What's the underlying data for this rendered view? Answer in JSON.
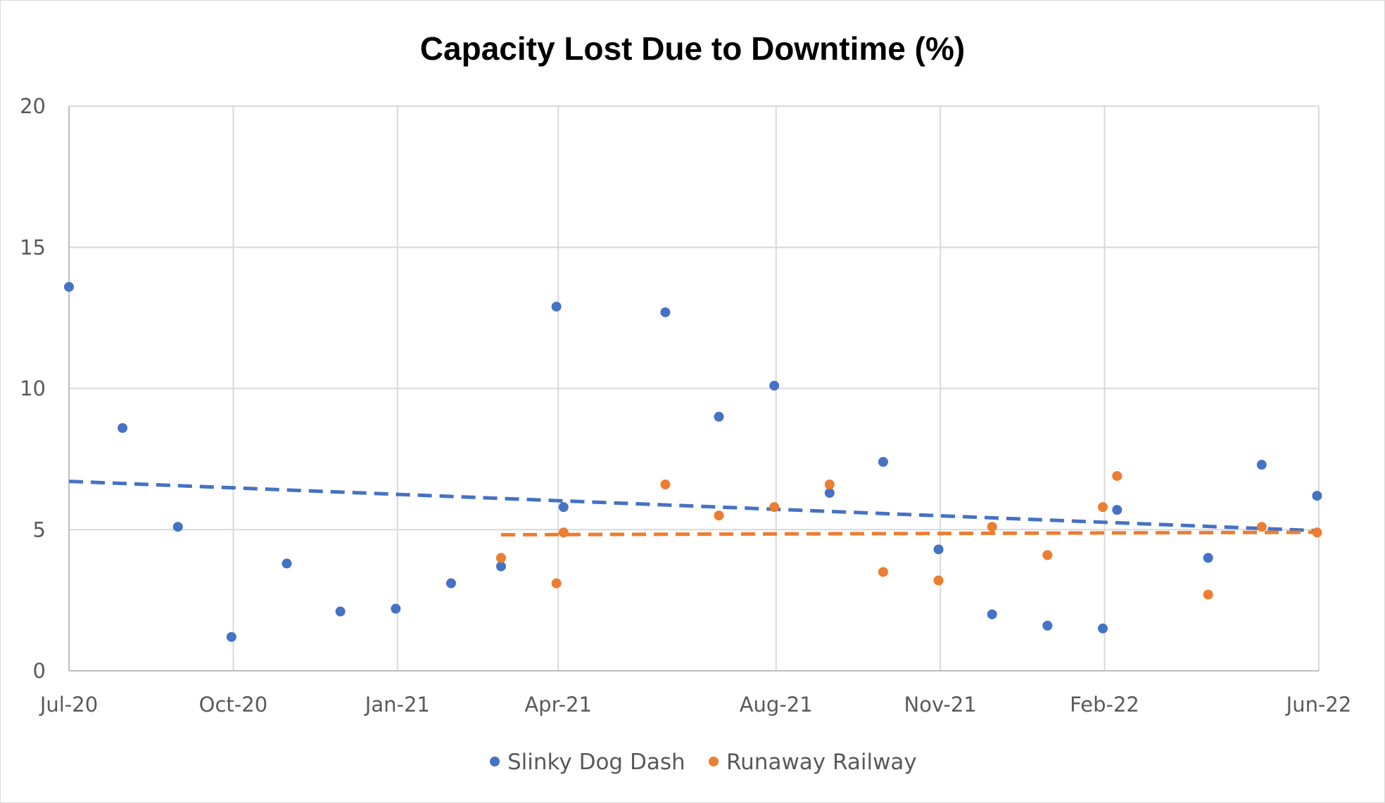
{
  "chart_data": {
    "type": "scatter",
    "title": "Capacity Lost Due to Downtime (%)",
    "xlabel": "",
    "ylabel": "",
    "x_type": "date",
    "xlim": [
      "2020-07-01",
      "2022-06-01"
    ],
    "ylim": [
      0,
      20
    ],
    "y_ticks": [
      0,
      5,
      10,
      15,
      20
    ],
    "x_ticks": [
      {
        "label": "Jul-20",
        "date": "2020-07-01"
      },
      {
        "label": "Oct-20",
        "date": "2020-10-01"
      },
      {
        "label": "Jan-21",
        "date": "2021-01-01"
      },
      {
        "label": "Apr-21",
        "date": "2021-04-01"
      },
      {
        "label": "Aug-21",
        "date": "2021-08-01"
      },
      {
        "label": "Nov-21",
        "date": "2021-11-01"
      },
      {
        "label": "Feb-22",
        "date": "2022-02-01"
      },
      {
        "label": "Jun-22",
        "date": "2022-06-01"
      }
    ],
    "grid": true,
    "legend_position": "bottom",
    "series": [
      {
        "name": "Slinky Dog Dash",
        "color": "#4472c4",
        "trendline": true,
        "points": [
          {
            "x": "2020-07-01",
            "y": 13.6
          },
          {
            "x": "2020-07-31",
            "y": 8.6
          },
          {
            "x": "2020-08-31",
            "y": 5.1
          },
          {
            "x": "2020-09-30",
            "y": 1.2
          },
          {
            "x": "2020-10-31",
            "y": 3.8
          },
          {
            "x": "2020-11-30",
            "y": 2.1
          },
          {
            "x": "2020-12-31",
            "y": 2.2
          },
          {
            "x": "2021-01-31",
            "y": 3.1
          },
          {
            "x": "2021-02-28",
            "y": 3.7
          },
          {
            "x": "2021-03-31",
            "y": 12.9
          },
          {
            "x": "2021-04-04",
            "y": 5.8
          },
          {
            "x": "2021-05-31",
            "y": 12.7
          },
          {
            "x": "2021-06-30",
            "y": 9.0
          },
          {
            "x": "2021-07-31",
            "y": 10.1
          },
          {
            "x": "2021-08-31",
            "y": 6.3
          },
          {
            "x": "2021-09-30",
            "y": 7.4
          },
          {
            "x": "2021-10-31",
            "y": 4.3
          },
          {
            "x": "2021-11-30",
            "y": 2.0
          },
          {
            "x": "2021-12-31",
            "y": 1.6
          },
          {
            "x": "2022-01-31",
            "y": 1.5
          },
          {
            "x": "2022-02-08",
            "y": 5.7
          },
          {
            "x": "2022-03-31",
            "y": 4.0
          },
          {
            "x": "2022-04-30",
            "y": 7.3
          },
          {
            "x": "2022-05-31",
            "y": 6.2
          }
        ]
      },
      {
        "name": "Runaway Railway",
        "color": "#ed7d31",
        "trendline": true,
        "points": [
          {
            "x": "2021-02-28",
            "y": 4.0
          },
          {
            "x": "2021-03-31",
            "y": 3.1
          },
          {
            "x": "2021-04-04",
            "y": 4.9
          },
          {
            "x": "2021-05-31",
            "y": 6.6
          },
          {
            "x": "2021-06-30",
            "y": 5.5
          },
          {
            "x": "2021-07-31",
            "y": 5.8
          },
          {
            "x": "2021-08-31",
            "y": 6.6
          },
          {
            "x": "2021-09-30",
            "y": 3.5
          },
          {
            "x": "2021-10-31",
            "y": 3.2
          },
          {
            "x": "2021-11-30",
            "y": 5.1
          },
          {
            "x": "2021-12-31",
            "y": 4.1
          },
          {
            "x": "2022-01-31",
            "y": 5.8
          },
          {
            "x": "2022-02-08",
            "y": 6.9
          },
          {
            "x": "2022-03-31",
            "y": 2.7
          },
          {
            "x": "2022-04-30",
            "y": 5.1
          },
          {
            "x": "2022-05-31",
            "y": 4.9
          }
        ]
      }
    ]
  }
}
